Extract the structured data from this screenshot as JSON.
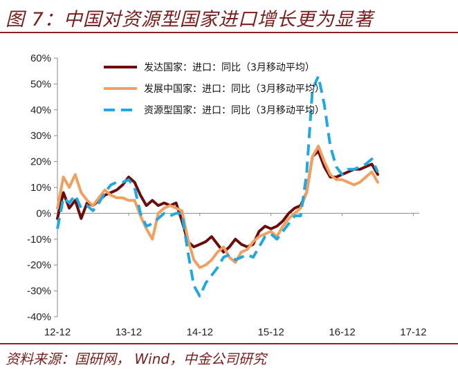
{
  "title": "图 7：中国对资源型国家进口增长更为显著",
  "source": "资料来源：国研网， Wind，中金公司研究",
  "chart_data": {
    "type": "line",
    "title": "图 7：中国对资源型国家进口增长更为显著",
    "xlabel": "",
    "ylabel": "",
    "ylim": [
      -40,
      60
    ],
    "yticks": [
      -40,
      -30,
      -20,
      -10,
      0,
      10,
      20,
      30,
      40,
      50,
      60
    ],
    "ytick_labels": [
      "-40%",
      "-30%",
      "-20%",
      "-10%",
      "0%",
      "10%",
      "20%",
      "30%",
      "40%",
      "50%",
      "60%"
    ],
    "xticks": [
      0,
      12,
      24,
      36,
      48,
      60
    ],
    "xtick_labels": [
      "12-12",
      "13-12",
      "14-12",
      "15-12",
      "16-12",
      "17-12"
    ],
    "x_range": [
      0,
      61
    ],
    "legend_position": "top-center",
    "series": [
      {
        "name": "发达国家：进口：同比（3月移动平均）",
        "color": "#6b0d0d",
        "dash": "solid",
        "values": [
          -2,
          8,
          2,
          5,
          -2,
          4,
          3,
          5,
          7,
          8,
          9,
          11,
          14,
          12,
          7,
          3,
          5,
          3,
          4,
          3,
          4,
          -3,
          -11,
          -13,
          -12,
          -11,
          -9,
          -12,
          -15,
          -13,
          -10,
          -12,
          -13,
          -12,
          -7,
          -5,
          -6,
          -5,
          -3,
          0,
          2,
          3,
          8,
          22,
          24,
          18,
          14,
          14,
          15,
          16,
          17,
          17,
          18,
          19,
          15
        ]
      },
      {
        "name": "发展中国家：进口：同比（3月移动平均）",
        "color": "#f0a060",
        "dash": "solid",
        "values": [
          2,
          14,
          10,
          15,
          8,
          5,
          3,
          6,
          9,
          7,
          6,
          6,
          5,
          5,
          -1,
          -6,
          -10,
          0,
          2,
          3,
          2,
          1,
          -10,
          -18,
          -21,
          -20,
          -18,
          -15,
          -13,
          -17,
          -19,
          -15,
          -14,
          -11,
          -9,
          -8,
          -7,
          -9,
          -5,
          -2,
          0,
          2,
          8,
          22,
          26,
          20,
          15,
          13,
          13,
          12,
          11,
          12,
          14,
          16,
          12
        ]
      },
      {
        "name": "资源型国家：进口：同比（3月移动平均）",
        "color": "#22a8e0",
        "dash": "dashed",
        "values": [
          -6,
          6,
          4,
          7,
          2,
          3,
          1,
          4,
          8,
          11,
          12,
          12,
          13,
          10,
          0,
          -5,
          -4,
          -2,
          0,
          -1,
          0,
          0,
          -15,
          -28,
          -32,
          -27,
          -24,
          -21,
          -17,
          -16,
          -18,
          -17,
          -16,
          -17,
          -13,
          -9,
          -8,
          -10,
          -7,
          -4,
          -1,
          -1,
          15,
          48,
          53,
          42,
          26,
          18,
          15,
          17,
          17,
          18,
          19,
          21,
          16
        ]
      }
    ]
  }
}
